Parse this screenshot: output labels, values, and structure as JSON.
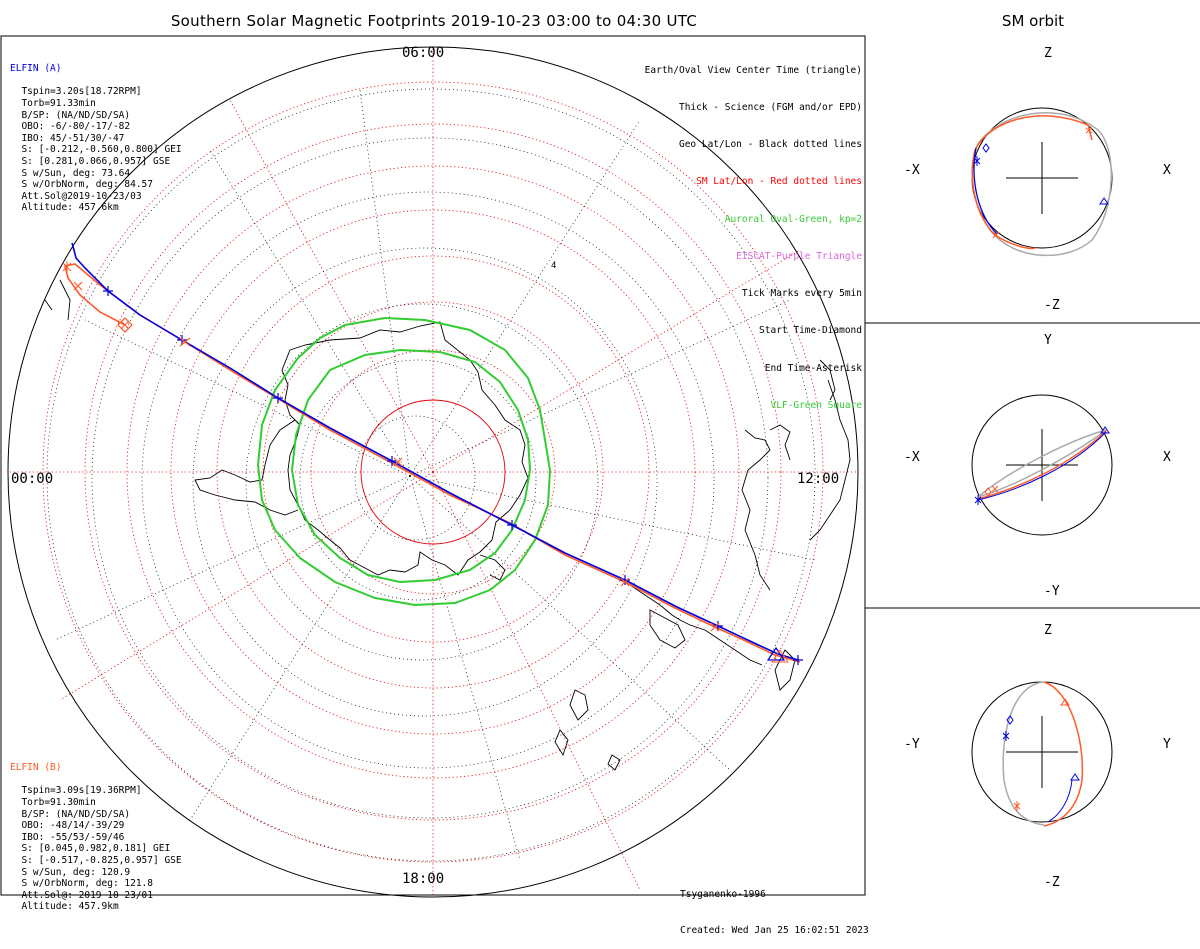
{
  "title": "Southern Solar Magnetic Footprints 2019-10-23 03:00 to 04:30 UTC",
  "orbit_title": "SM orbit",
  "mlt_labels": {
    "top": "06:00",
    "left": "00:00",
    "right": "12:00",
    "bottom": "18:00"
  },
  "elfin_a": {
    "name": "ELFIN (A)",
    "color": "#0000ff",
    "lines": [
      "Tspin=3.20s[18.72RPM]",
      "Torb=91.33min",
      "B/SP: (NA/ND/SD/SA)",
      "OBO: -6/-80/-17/-82",
      "IBO: 45/-51/30/-47",
      "S: [-0.212,-0.560,0.800] GEI",
      "S: [0.281,0.066,0.957] GSE",
      "S w/Sun, deg: 73.64",
      "S w/OrbNorm, deg: 84.57",
      "Att.Sol@2019-10-23/03",
      "Altitude: 457.6km"
    ]
  },
  "elfin_b": {
    "name": "ELFIN (B)",
    "color": "#ff5a28",
    "lines": [
      "Tspin=3.09s[19.36RPM]",
      "Torb=91.30min",
      "B/SP: (NA/ND/SD/SA)",
      "OBO: -48/14/-39/29",
      "IBO: -55/53/-59/46",
      "S: [0.045,0.982,0.181] GEI",
      "S: [-0.517,-0.825,0.957] GSE",
      "S w/Sun, deg: 120.9",
      "S w/OrbNorm, deg: 121.8",
      "Att.Sol@: 2019-10-23/01",
      "Altitude: 457.9km"
    ]
  },
  "legend": [
    {
      "text": "Earth/Oval View Center Time (triangle)",
      "color": "#000000"
    },
    {
      "text": "Thick - Science (FGM and/or EPD)",
      "color": "#000000"
    },
    {
      "text": "Geo Lat/Lon - Black dotted lines",
      "color": "#000000"
    },
    {
      "text": "SM Lat/Lon - Red dotted lines",
      "color": "#ff0000"
    },
    {
      "text": "Auroral Oval-Green, kp=2",
      "color": "#33cc33"
    },
    {
      "text": "EISCAT-Purple Triangle",
      "color": "#dd66dd"
    },
    {
      "text": "Tick Marks every 5min",
      "color": "#000000"
    },
    {
      "text": "Start Time-Diamond",
      "color": "#000000"
    },
    {
      "text": "End Time-Asterisk",
      "color": "#000000"
    },
    {
      "text": "VLF-Green Square",
      "color": "#33cc33"
    }
  ],
  "credits": {
    "model": "Tsyganenko-1996",
    "created": "Created: Wed Jan 25 16:02:51 2023"
  },
  "orbit_panels": [
    {
      "left": "-X",
      "right": "X",
      "top": "Z",
      "bottom": "-Z"
    },
    {
      "left": "-X",
      "right": "X",
      "top": "Y",
      "bottom": "-Y"
    },
    {
      "left": "-Y",
      "right": "Y",
      "top": "Z",
      "bottom": "-Z"
    }
  ],
  "marker_label": "4"
}
